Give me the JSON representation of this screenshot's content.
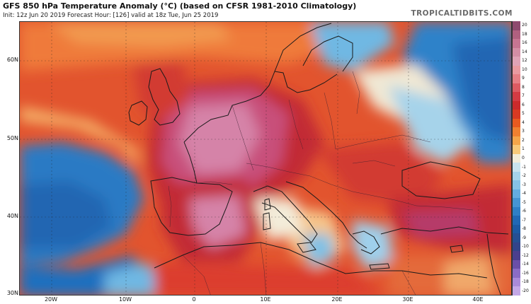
{
  "header": {
    "title": "GFS 850 hPa Temperature Anomaly (°C) (based on CFSR 1981-2010 Climatology)",
    "subtitle": "Init: 12z Jun 20 2019   Forecast Hour: [126]   valid at 18z Tue, Jun 25 2019",
    "brand": "TROPICALTIDBITS.COM"
  },
  "axes": {
    "lat_labels": [
      "60N",
      "50N",
      "40N",
      "30N"
    ],
    "lon_labels": [
      "20W",
      "10W",
      "0",
      "10E",
      "20E",
      "30E",
      "40E"
    ]
  },
  "colorbar": {
    "labels": [
      "20",
      "18",
      "16",
      "14",
      "12",
      "10",
      "9",
      "8",
      "7",
      "6",
      "5",
      "4",
      "3",
      "2",
      "1",
      "0",
      "-1",
      "-2",
      "-3",
      "-4",
      "-5",
      "-6",
      "-7",
      "-8",
      "-9",
      "-10",
      "-12",
      "-14",
      "-16",
      "-18",
      "-20"
    ],
    "colors": [
      "#8e4a6e",
      "#b0607f",
      "#c77592",
      "#d48ea5",
      "#e0a3b6",
      "#ea9aa0",
      "#e67f85",
      "#dc5b62",
      "#d43b43",
      "#cc2a2c",
      "#d93a22",
      "#e85a20",
      "#f08030",
      "#f5a54a",
      "#f8c97a",
      "#f3ecd9",
      "#c9e3ee",
      "#a6d3ea",
      "#86c2e4",
      "#64ade0",
      "#4695d3",
      "#2f7fc6",
      "#2168b5",
      "#1d5aa4",
      "#264f93",
      "#32448a",
      "#4a3f8e",
      "#6a4fa8",
      "#8a6cc4",
      "#a98ad8",
      "#c4a8e6"
    ]
  },
  "map": {
    "palette": {
      "ocean_cold": "#2c7ac4",
      "ocean_deep": "#2466b2",
      "ocean_mild": "#7fc1e6",
      "near_zero": "#f0e8d4",
      "warm_light": "#f6b46a",
      "warm": "#ef7a3a",
      "warm_strong": "#dc3d2e",
      "hot": "#c22a34",
      "very_hot": "#c84f7a",
      "extreme": "#d583a8",
      "border": "#222222"
    }
  }
}
